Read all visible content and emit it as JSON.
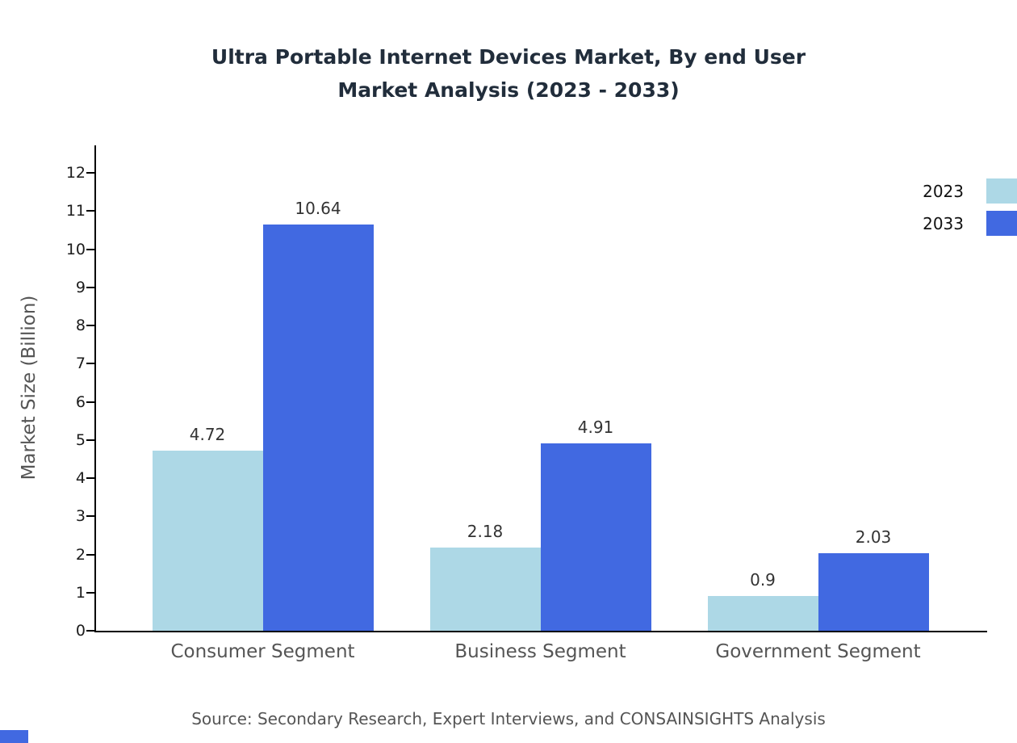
{
  "title": {
    "line1": "Ultra Portable Internet Devices Market, By end User",
    "line2": "Market Analysis (2023 - 2033)"
  },
  "source_text": "Source: Secondary Research, Expert Interviews, and CONSAINSIGHTS Analysis",
  "chart_data": {
    "type": "bar",
    "title": "Ultra Portable Internet Devices Market, By end User Market Analysis (2023 - 2033)",
    "categories": [
      "Consumer Segment",
      "Business Segment",
      "Government Segment"
    ],
    "series": [
      {
        "name": "2023",
        "color": "#ADD8E6",
        "values": [
          4.72,
          2.18,
          0.9
        ]
      },
      {
        "name": "2033",
        "color": "#4169E1",
        "values": [
          10.64,
          4.91,
          2.03
        ]
      }
    ],
    "xlabel": "",
    "ylabel": "Market Size (Billion)",
    "ylim": [
      0,
      12
    ],
    "yticks": [
      0,
      1,
      2,
      3,
      4,
      5,
      6,
      7,
      8,
      9,
      10,
      11,
      12
    ],
    "grid": false,
    "legend_position": "top-right",
    "axis_color": "#000000",
    "value_label_color": "#333333"
  }
}
